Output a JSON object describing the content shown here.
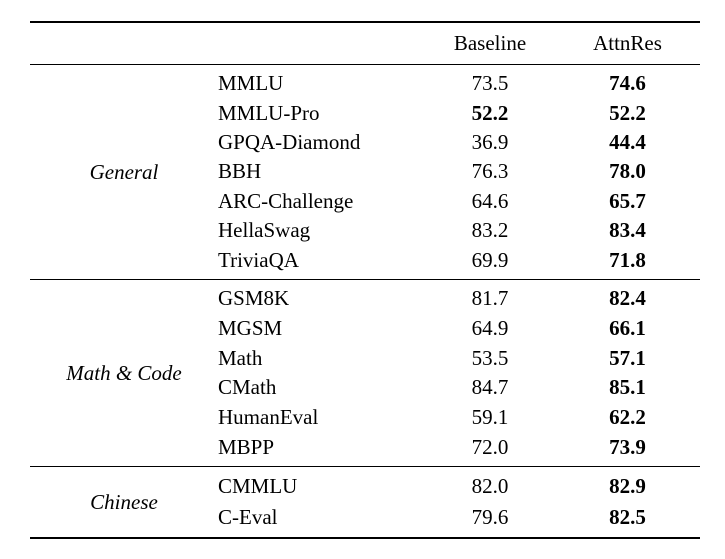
{
  "table": {
    "header": {
      "baseline": "Baseline",
      "attnres": "AttnRes"
    },
    "sections": [
      {
        "group": "General",
        "rows": [
          {
            "name": "MMLU",
            "baseline": "73.5",
            "attnres": "74.6"
          },
          {
            "name": "MMLU-Pro",
            "baseline": "52.2",
            "attnres": "52.2"
          },
          {
            "name": "GPQA-Diamond",
            "baseline": "36.9",
            "attnres": "44.4"
          },
          {
            "name": "BBH",
            "baseline": "76.3",
            "attnres": "78.0"
          },
          {
            "name": "ARC-Challenge",
            "baseline": "64.6",
            "attnres": "65.7"
          },
          {
            "name": "HellaSwag",
            "baseline": "83.2",
            "attnres": "83.4"
          },
          {
            "name": "TriviaQA",
            "baseline": "69.9",
            "attnres": "71.8"
          }
        ]
      },
      {
        "group": "Math & Code",
        "rows": [
          {
            "name": "GSM8K",
            "baseline": "81.7",
            "attnres": "82.4"
          },
          {
            "name": "MGSM",
            "baseline": "64.9",
            "attnres": "66.1"
          },
          {
            "name": "Math",
            "baseline": "53.5",
            "attnres": "57.1"
          },
          {
            "name": "CMath",
            "baseline": "84.7",
            "attnres": "85.1"
          },
          {
            "name": "HumanEval",
            "baseline": "59.1",
            "attnres": "62.2"
          },
          {
            "name": "MBPP",
            "baseline": "72.0",
            "attnres": "73.9"
          }
        ]
      },
      {
        "group": "Chinese",
        "rows": [
          {
            "name": "CMMLU",
            "baseline": "82.0",
            "attnres": "82.9"
          },
          {
            "name": "C-Eval",
            "baseline": "79.6",
            "attnres": "82.5"
          }
        ]
      }
    ]
  }
}
